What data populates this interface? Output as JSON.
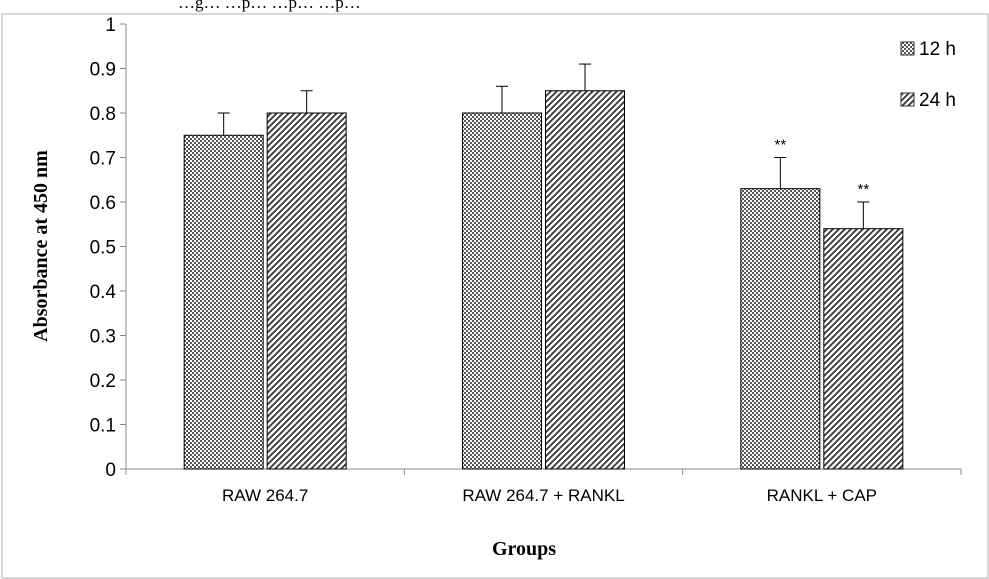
{
  "top_text": "…g… …p… …p… …p…",
  "chart_data": {
    "type": "bar",
    "title": "",
    "xlabel": "Groups",
    "ylabel": "Absorbance at 450 nm",
    "ylim": [
      0,
      1
    ],
    "yticks": [
      "0",
      "0.1",
      "0.2",
      "0.3",
      "0.4",
      "0.5",
      "0.6",
      "0.7",
      "0.8",
      "0.9",
      "1"
    ],
    "categories": [
      "RAW 264.7",
      "RAW 264.7 + RANKL",
      "RANKL + CAP"
    ],
    "series": [
      {
        "name": "12 h",
        "values": [
          0.75,
          0.8,
          0.63
        ],
        "errors": [
          0.05,
          0.06,
          0.07
        ],
        "significance": [
          "",
          "",
          "**"
        ]
      },
      {
        "name": "24 h",
        "values": [
          0.8,
          0.85,
          0.54
        ],
        "errors": [
          0.05,
          0.06,
          0.06
        ],
        "significance": [
          "",
          "",
          "**"
        ]
      }
    ],
    "grid": false,
    "legend_position": "top-right"
  }
}
